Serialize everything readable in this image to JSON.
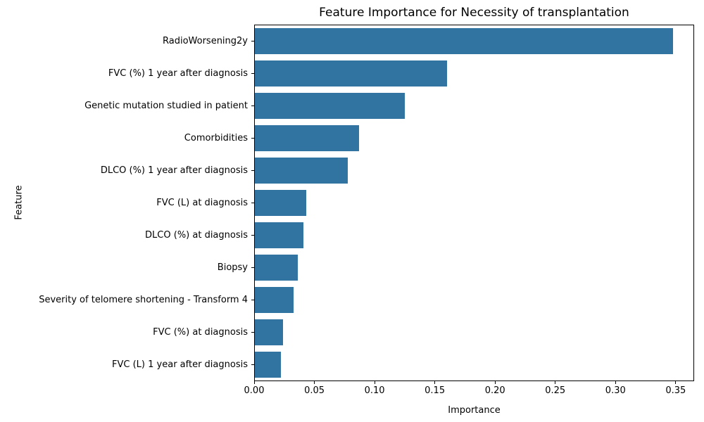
{
  "chart_data": {
    "type": "bar",
    "orientation": "horizontal",
    "title": "Feature Importance for Necessity of transplantation",
    "xlabel": "Importance",
    "ylabel": "Feature",
    "categories": [
      "RadioWorsening2y",
      "FVC (%) 1 year after diagnosis",
      "Genetic mutation studied in patient",
      "Comorbidities",
      "DLCO (%) 1 year after diagnosis",
      "FVC (L) at diagnosis",
      "DLCO (%) at diagnosis",
      "Biopsy",
      "Severity of telomere shortening - Transform 4",
      "FVC (%) at diagnosis",
      "FVC (L) 1 year after diagnosis"
    ],
    "values": [
      0.348,
      0.16,
      0.125,
      0.087,
      0.078,
      0.043,
      0.041,
      0.036,
      0.033,
      0.024,
      0.022
    ],
    "xlim": [
      0,
      0.365
    ],
    "xticks": {
      "values": [
        0.0,
        0.05,
        0.1,
        0.15,
        0.2,
        0.25,
        0.3,
        0.35
      ],
      "labels": [
        "0.00",
        "0.05",
        "0.10",
        "0.15",
        "0.20",
        "0.25",
        "0.30",
        "0.35"
      ]
    },
    "bar_color": "#3274a1",
    "background_color": "#ffffff",
    "spine_color": "#000000",
    "grid": false,
    "legend": "none"
  }
}
